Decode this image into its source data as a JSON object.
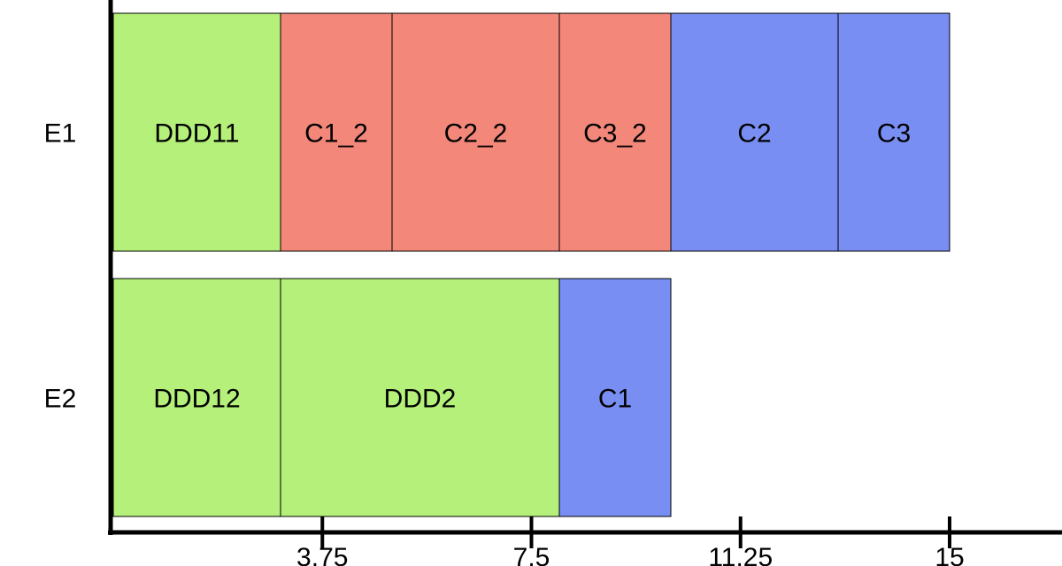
{
  "chart_data": {
    "type": "gantt",
    "title": "",
    "xlabel": "",
    "ylabel": "",
    "xlim": [
      0,
      17.5
    ],
    "x_ticks": [
      3.75,
      7.5,
      11.25,
      15
    ],
    "x_tick_labels": [
      "3.75",
      "7.5",
      "11.25",
      "15"
    ],
    "rows": [
      "E1",
      "E2"
    ],
    "categories": {
      "green": "#b4f07a",
      "red": "#f2877a",
      "blue": "#798ef2"
    },
    "tasks": [
      {
        "row": "E1",
        "label": "DDD11",
        "start": 0,
        "end": 3,
        "color": "green"
      },
      {
        "row": "E1",
        "label": "C1_2",
        "start": 3,
        "end": 5,
        "color": "red"
      },
      {
        "row": "E1",
        "label": "C2_2",
        "start": 5,
        "end": 8,
        "color": "red"
      },
      {
        "row": "E1",
        "label": "C3_2",
        "start": 8,
        "end": 10,
        "color": "red"
      },
      {
        "row": "E1",
        "label": "C2",
        "start": 10,
        "end": 13,
        "color": "blue"
      },
      {
        "row": "E1",
        "label": "C3",
        "start": 13,
        "end": 15,
        "color": "blue"
      },
      {
        "row": "E2",
        "label": "DDD12",
        "start": 0,
        "end": 3,
        "color": "green"
      },
      {
        "row": "E2",
        "label": "DDD2",
        "start": 3,
        "end": 8,
        "color": "green"
      },
      {
        "row": "E2",
        "label": "C1",
        "start": 8,
        "end": 10,
        "color": "blue"
      }
    ],
    "grid": false,
    "legend": "none"
  }
}
